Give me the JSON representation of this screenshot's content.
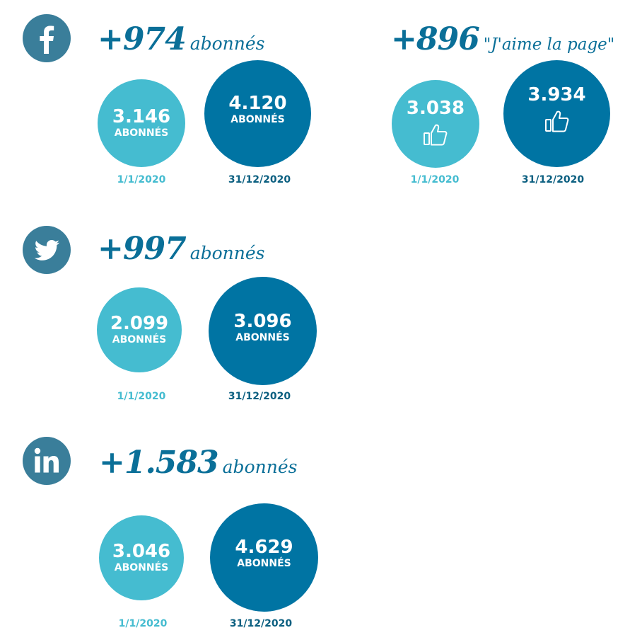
{
  "chart_data": [
    {
      "type": "bubble",
      "network": "facebook",
      "headline": {
        "value": "+974",
        "unit": "abonnés"
      },
      "points": [
        {
          "date": "1/1/2020",
          "value": "3.146",
          "label": "ABONNÉS",
          "color": "#45bcd0"
        },
        {
          "date": "31/12/2020",
          "value": "4.120",
          "label": "ABONNÉS",
          "color": "#0074a3"
        }
      ]
    },
    {
      "type": "bubble",
      "network": "facebook-likes",
      "headline": {
        "value": "+896",
        "unit": "\"J'aime la page\""
      },
      "points": [
        {
          "date": "1/1/2020",
          "value": "3.038",
          "icon": "thumbs-up-icon",
          "color": "#45bcd0"
        },
        {
          "date": "31/12/2020",
          "value": "3.934",
          "icon": "thumbs-up-icon",
          "color": "#0074a3"
        }
      ]
    },
    {
      "type": "bubble",
      "network": "twitter",
      "headline": {
        "value": "+997",
        "unit": "abonnés"
      },
      "points": [
        {
          "date": "1/1/2020",
          "value": "2.099",
          "label": "ABONNÉS",
          "color": "#45bcd0"
        },
        {
          "date": "31/12/2020",
          "value": "3.096",
          "label": "ABONNÉS",
          "color": "#0074a3"
        }
      ]
    },
    {
      "type": "bubble",
      "network": "linkedin",
      "headline": {
        "value": "+1.583",
        "unit": "abonnés"
      },
      "points": [
        {
          "date": "1/1/2020",
          "value": "3.046",
          "label": "ABONNÉS",
          "color": "#45bcd0"
        },
        {
          "date": "31/12/2020",
          "value": "4.629",
          "label": "ABONNÉS",
          "color": "#0074a3"
        }
      ]
    }
  ],
  "icons": {
    "facebook": "facebook-icon",
    "twitter": "twitter-icon",
    "linkedin": "linkedin-icon",
    "like": "thumbs-up-icon"
  },
  "colors": {
    "icon_bg": "#3a7e9a",
    "headline": "#0a6f98",
    "light": "#45bcd0",
    "dark": "#0074a3",
    "dark_date": "#0b5f80"
  }
}
